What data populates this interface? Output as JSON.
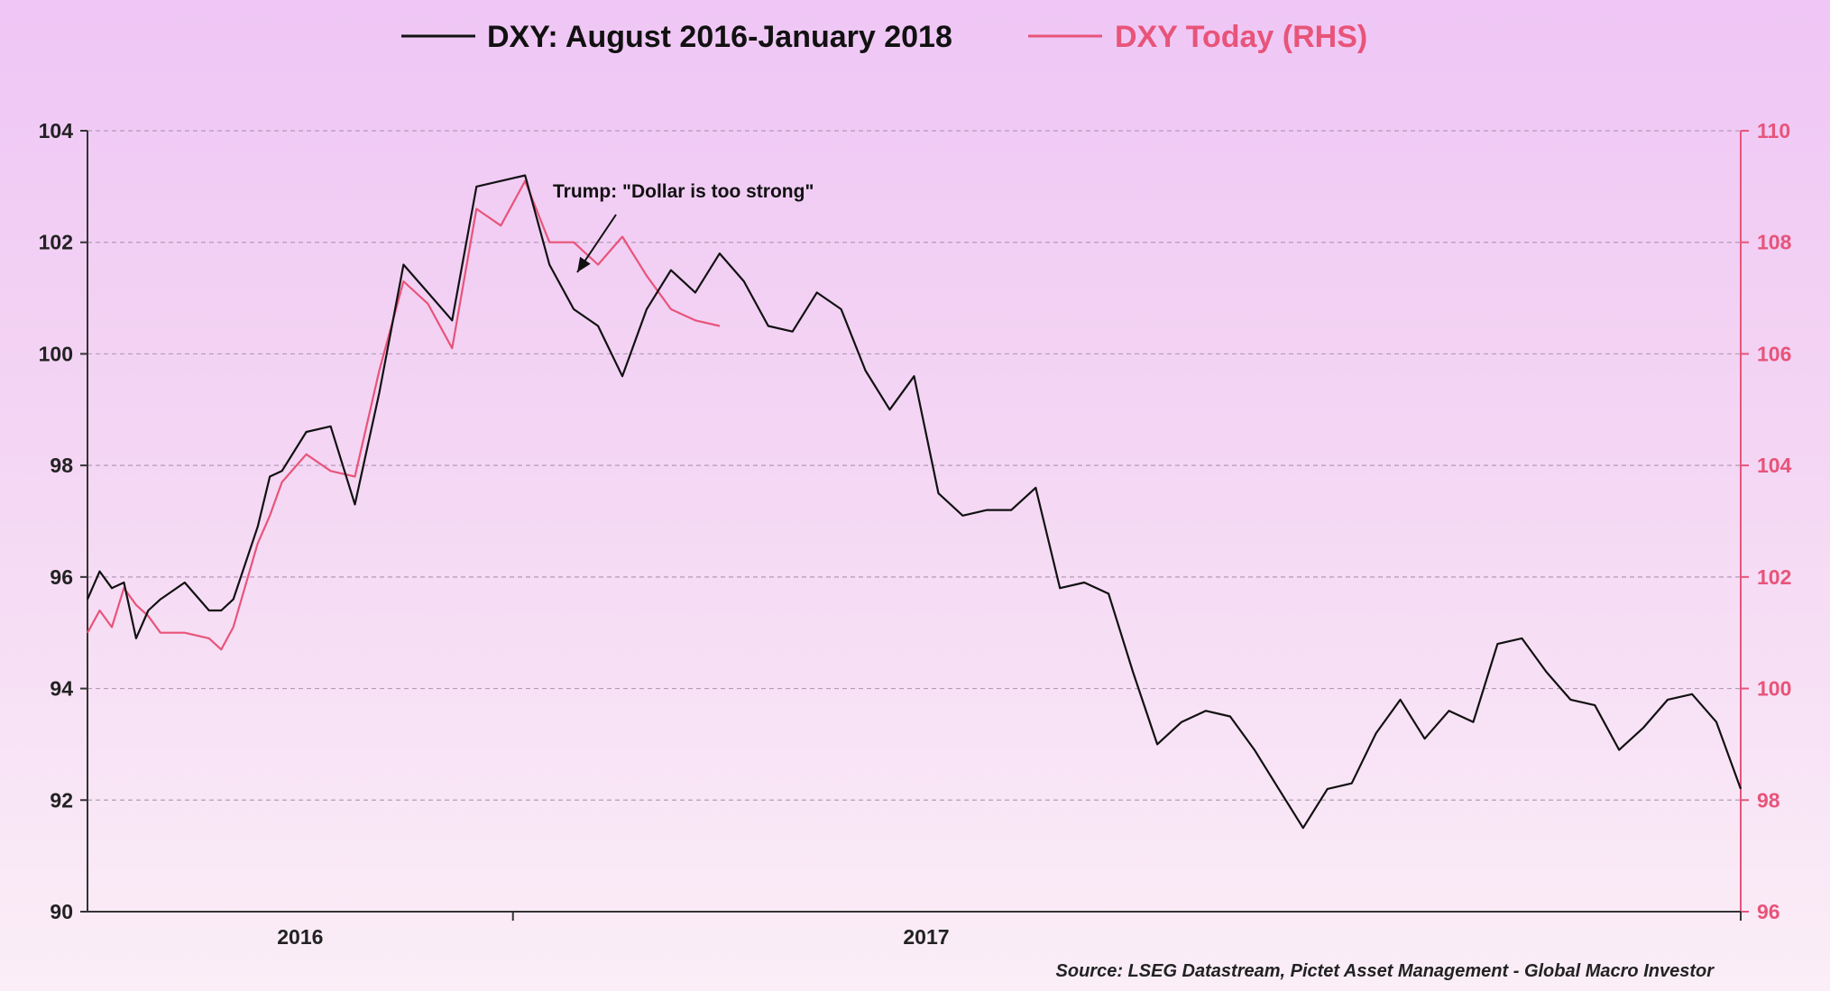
{
  "chart_data": {
    "type": "line",
    "title": "",
    "xlabel": "",
    "ylabel": "",
    "x_tick_labels": [
      "2016",
      "2017"
    ],
    "left_axis": {
      "ylim": [
        90,
        104
      ],
      "ticks": [
        90,
        92,
        94,
        96,
        98,
        100,
        102,
        104
      ]
    },
    "right_axis": {
      "ylim": [
        96,
        110
      ],
      "ticks": [
        96,
        98,
        100,
        102,
        104,
        106,
        108,
        110
      ]
    },
    "grid": "horizontal dashed",
    "legend_position": "top",
    "series": [
      {
        "name": "DXY: August 2016-January 2018",
        "axis": "left",
        "color": "#111111",
        "x": [
          0,
          0.5,
          1,
          1.5,
          2,
          2.5,
          3,
          4,
          5,
          5.5,
          6,
          7,
          7.5,
          8,
          9,
          10,
          11,
          12,
          13,
          14,
          15,
          16,
          17,
          18,
          19,
          20,
          21,
          22,
          23,
          24,
          25,
          26,
          27,
          28,
          29,
          30,
          31,
          32,
          33,
          34,
          35,
          36,
          37,
          38,
          39,
          40,
          41,
          42,
          43,
          44,
          45,
          46,
          47,
          48,
          49,
          50,
          51,
          52,
          53,
          54,
          55,
          56,
          57,
          58,
          59,
          60,
          61,
          62,
          63,
          64,
          65,
          66,
          67,
          68
        ],
        "values": [
          95.6,
          96.1,
          95.8,
          95.9,
          94.9,
          95.4,
          95.6,
          95.9,
          95.4,
          95.4,
          95.6,
          96.9,
          97.8,
          97.9,
          98.6,
          98.7,
          97.3,
          99.3,
          101.6,
          101.1,
          100.6,
          103.0,
          103.1,
          103.2,
          101.6,
          100.8,
          100.5,
          99.6,
          100.8,
          101.5,
          101.1,
          101.8,
          101.3,
          100.5,
          100.4,
          101.1,
          100.8,
          99.7,
          99.0,
          99.6,
          97.5,
          97.1,
          97.2,
          97.2,
          97.6,
          95.8,
          95.9,
          95.7,
          94.3,
          93.0,
          93.4,
          93.6,
          93.5,
          92.9,
          92.2,
          91.5,
          92.2,
          92.3,
          93.2,
          93.8,
          93.1,
          93.6,
          93.4,
          94.8,
          94.9,
          94.3,
          93.8,
          93.7,
          92.9,
          93.3,
          93.8,
          93.9,
          93.4,
          92.2
        ]
      },
      {
        "name": "DXY Today (RHS)",
        "axis": "right",
        "color": "#e8547a",
        "x": [
          0,
          0.5,
          1,
          1.5,
          2,
          2.5,
          3,
          4,
          5,
          5.5,
          6,
          7,
          7.5,
          8,
          9,
          10,
          11,
          12,
          13,
          14,
          15,
          16,
          17,
          18,
          19,
          20,
          21,
          22,
          23,
          24,
          25,
          26
        ],
        "values": [
          101.0,
          101.4,
          101.1,
          101.8,
          101.5,
          101.3,
          101.0,
          101.0,
          100.9,
          100.7,
          101.1,
          102.6,
          103.1,
          103.7,
          104.2,
          103.9,
          103.8,
          105.7,
          107.3,
          106.9,
          106.1,
          108.6,
          108.3,
          109.1,
          108.0,
          108.0,
          107.6,
          108.1,
          107.4,
          106.8,
          106.6,
          106.5
        ]
      }
    ],
    "annotations": [
      {
        "text": "Trump: \"Dollar is too strong\"",
        "x": 22,
        "y": 101.4,
        "axis": "left",
        "arrow": true
      }
    ]
  },
  "legend": {
    "entries": [
      {
        "label": "DXY: August 2016-January 2018",
        "color": "#111111"
      },
      {
        "label": "DXY Today (RHS)",
        "color": "#e8547a"
      }
    ]
  },
  "source": "Source: LSEG Datastream, Pictet Asset Management - Global Macro Investor",
  "colors": {
    "axis_right": "#e8547a",
    "axis_left": "#222222",
    "grid": "#b79ab8"
  }
}
